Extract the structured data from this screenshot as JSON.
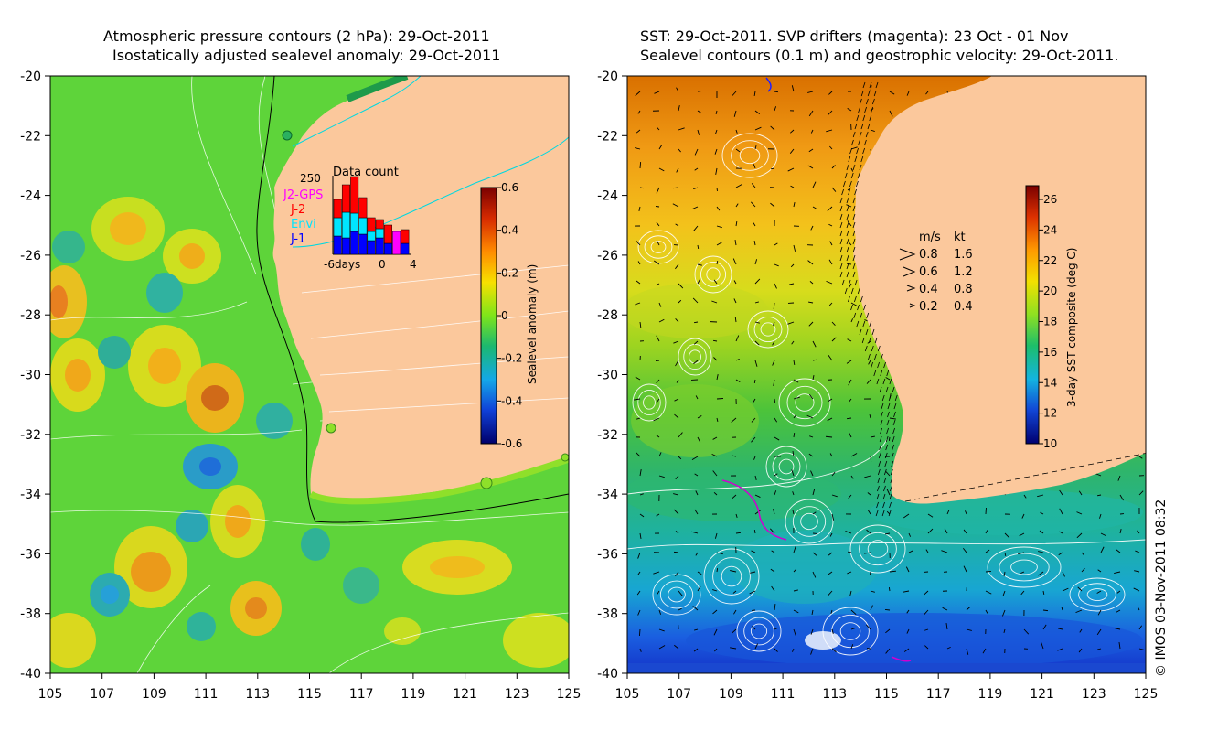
{
  "left_panel": {
    "title_line1": "Atmospheric pressure contours (2 hPa): 29-Oct-2011",
    "title_line2": "Isostatically adjusted sealevel anomaly: 29-Oct-2011",
    "lat_ticks": [
      "-20",
      "-22",
      "-24",
      "-26",
      "-28",
      "-30",
      "-32",
      "-34",
      "-36",
      "-38",
      "-40"
    ],
    "lon_ticks": [
      "105",
      "107",
      "109",
      "111",
      "113",
      "115",
      "117",
      "119",
      "121",
      "123",
      "125"
    ],
    "colorbar": {
      "label": "Sealevel anomaly (m)",
      "ticks": [
        "0.6",
        "0.4",
        "0.2",
        "0",
        "-0.2",
        "-0.4",
        "-0.6"
      ]
    },
    "inset": {
      "title": "Data count",
      "ymax_label": "250",
      "x_labels": [
        "-6days",
        "0",
        "4"
      ],
      "legend": [
        {
          "name": "J2-GPS",
          "color": "#ff00ff"
        },
        {
          "name": "J-2",
          "color": "#ff0000"
        },
        {
          "name": "Envi",
          "color": "#00e5ff"
        },
        {
          "name": "J-1",
          "color": "#0000ff"
        }
      ]
    }
  },
  "right_panel": {
    "title_line1": "SST: 29-Oct-2011. SVP drifters (magenta): 23 Oct - 01 Nov",
    "title_line2": "Sealevel contours (0.1 m) and geostrophic velocity: 29-Oct-2011.",
    "lat_ticks": [
      "-20",
      "-22",
      "-24",
      "-26",
      "-28",
      "-30",
      "-32",
      "-34",
      "-36",
      "-38",
      "-40"
    ],
    "lon_ticks": [
      "105",
      "107",
      "109",
      "111",
      "113",
      "115",
      "117",
      "119",
      "121",
      "123",
      "125"
    ],
    "colorbar": {
      "label": "3-day SST composite (deg C)",
      "ticks": [
        "26",
        "24",
        "22",
        "20",
        "18",
        "16",
        "14",
        "12",
        "10"
      ]
    },
    "velocity_legend": {
      "header_ms": "m/s",
      "header_kt": "kt",
      "rows": [
        {
          "ms": "0.8",
          "kt": "1.6"
        },
        {
          "ms": "0.6",
          "kt": "1.2"
        },
        {
          "ms": "0.4",
          "kt": "0.8"
        },
        {
          "ms": "0.2",
          "kt": "0.4"
        }
      ]
    }
  },
  "credit": "© IMOS 03-Nov-2011 08:32",
  "colors": {
    "land": "#fbc89c",
    "ocean_mid": "#5ed43a",
    "frame": "#000000"
  }
}
